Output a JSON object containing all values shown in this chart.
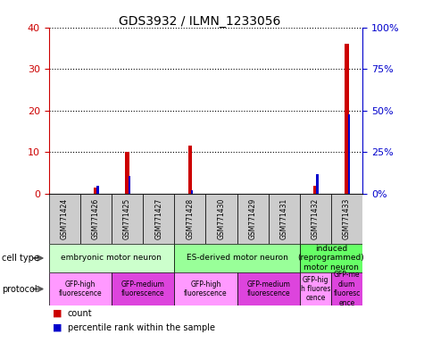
{
  "title": "GDS3932 / ILMN_1233056",
  "samples": [
    "GSM771424",
    "GSM771426",
    "GSM771425",
    "GSM771427",
    "GSM771428",
    "GSM771430",
    "GSM771429",
    "GSM771431",
    "GSM771432",
    "GSM771433"
  ],
  "count_values": [
    0,
    1.5,
    10,
    0,
    11.5,
    0,
    0,
    0,
    2,
    36
  ],
  "percentile_values": [
    0,
    5,
    10.5,
    0,
    2,
    0,
    0,
    0,
    12,
    48
  ],
  "ylim_left": [
    0,
    40
  ],
  "yticks_left": [
    0,
    10,
    20,
    30,
    40
  ],
  "yticks_right": [
    0,
    25,
    50,
    75,
    100
  ],
  "ytick_labels_right": [
    "0%",
    "25%",
    "50%",
    "75%",
    "100%"
  ],
  "bar_color": "#cc0000",
  "percentile_color": "#0000cc",
  "cell_type_groups": [
    {
      "label": "embryonic motor neuron",
      "start": 0,
      "end": 3,
      "color": "#ccffcc"
    },
    {
      "label": "ES-derived motor neuron",
      "start": 4,
      "end": 7,
      "color": "#99ff99"
    },
    {
      "label": "induced\n(reprogrammed)\nmotor neuron",
      "start": 8,
      "end": 9,
      "color": "#66ff66"
    }
  ],
  "protocol_groups": [
    {
      "label": "GFP-high\nfluorescence",
      "start": 0,
      "end": 1,
      "color": "#ff99ff"
    },
    {
      "label": "GFP-medium\nfluorescence",
      "start": 2,
      "end": 3,
      "color": "#dd44dd"
    },
    {
      "label": "GFP-high\nfluorescence",
      "start": 4,
      "end": 5,
      "color": "#ff99ff"
    },
    {
      "label": "GFP-medium\nfluorescence",
      "start": 6,
      "end": 7,
      "color": "#dd44dd"
    },
    {
      "label": "GFP-hig\nh fluores\ncence",
      "start": 8,
      "end": 8,
      "color": "#ff99ff"
    },
    {
      "label": "GFP-me\ndium\nfluoresc\nence",
      "start": 9,
      "end": 9,
      "color": "#dd44dd"
    }
  ],
  "sample_bg_color": "#cccccc",
  "legend_count_label": "count",
  "legend_percentile_label": "percentile rank within the sample",
  "left_axis_color": "#cc0000",
  "right_axis_color": "#0000cc",
  "bar_width": 0.12,
  "percentile_bar_width": 0.06
}
